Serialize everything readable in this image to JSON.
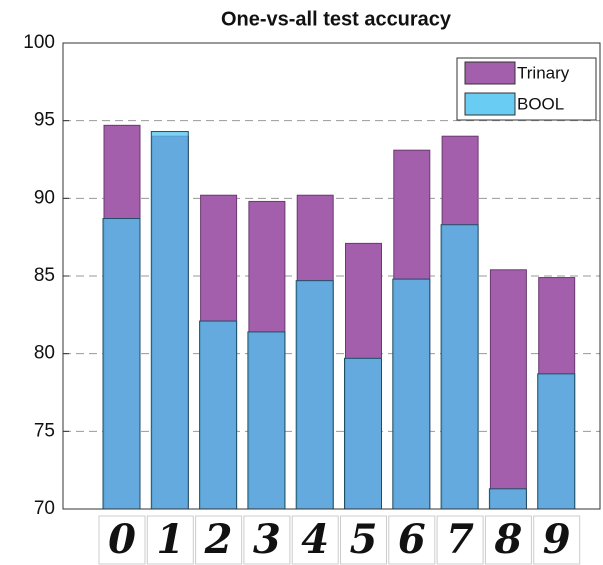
{
  "chart_data": {
    "type": "bar",
    "title": "One-vs-all test accuracy",
    "categories": [
      "0",
      "1",
      "2",
      "3",
      "4",
      "5",
      "6",
      "7",
      "8",
      "9"
    ],
    "series": [
      {
        "name": "Trinary",
        "color": "#a35fab",
        "values": [
          94.7,
          94.0,
          90.2,
          89.8,
          90.2,
          87.1,
          93.1,
          94.0,
          85.4,
          84.9
        ]
      },
      {
        "name": "BOOL",
        "color": "#4fc3f0",
        "values": [
          88.7,
          94.3,
          82.1,
          81.4,
          84.7,
          79.7,
          84.8,
          88.3,
          71.3,
          78.7
        ]
      }
    ],
    "ylim": [
      70,
      100
    ],
    "yticks": [
      70,
      75,
      80,
      85,
      90,
      95,
      100
    ],
    "grid": true,
    "legend": "top-right"
  }
}
